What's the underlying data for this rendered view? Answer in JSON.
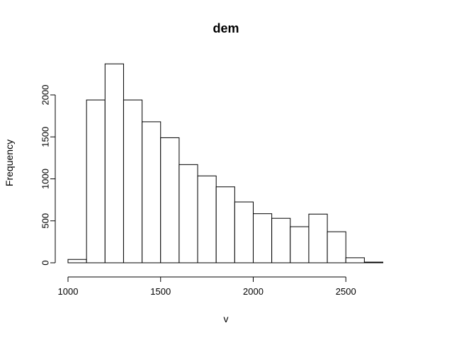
{
  "chart_data": {
    "type": "bar",
    "title": "dem",
    "xlabel": "v",
    "ylabel": "Frequency",
    "bin_width": 100,
    "bins": [
      {
        "start": 1000,
        "end": 1100,
        "count": 40
      },
      {
        "start": 1100,
        "end": 1200,
        "count": 1940
      },
      {
        "start": 1200,
        "end": 1300,
        "count": 2370
      },
      {
        "start": 1300,
        "end": 1400,
        "count": 1940
      },
      {
        "start": 1400,
        "end": 1500,
        "count": 1680
      },
      {
        "start": 1500,
        "end": 1600,
        "count": 1490
      },
      {
        "start": 1600,
        "end": 1700,
        "count": 1170
      },
      {
        "start": 1700,
        "end": 1800,
        "count": 1035
      },
      {
        "start": 1800,
        "end": 1900,
        "count": 905
      },
      {
        "start": 1900,
        "end": 2000,
        "count": 725
      },
      {
        "start": 2000,
        "end": 2100,
        "count": 585
      },
      {
        "start": 2100,
        "end": 2200,
        "count": 530
      },
      {
        "start": 2200,
        "end": 2300,
        "count": 430
      },
      {
        "start": 2300,
        "end": 2400,
        "count": 580
      },
      {
        "start": 2400,
        "end": 2500,
        "count": 370
      },
      {
        "start": 2500,
        "end": 2600,
        "count": 60
      },
      {
        "start": 2600,
        "end": 2700,
        "count": 8
      }
    ],
    "xlim": [
      1000,
      2700
    ],
    "ylim": [
      0,
      2400
    ],
    "x_ticks": [
      1000,
      1500,
      2000,
      2500
    ],
    "y_ticks": [
      0,
      500,
      1000,
      1500,
      2000
    ],
    "grid": false
  }
}
